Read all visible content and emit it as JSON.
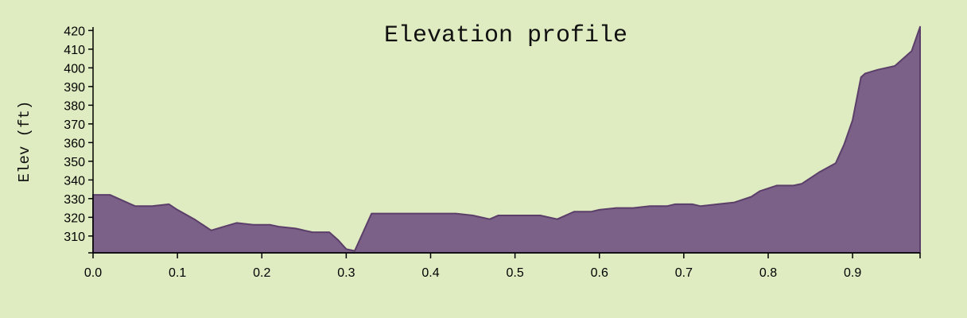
{
  "chart_data": {
    "type": "area",
    "title": "Elevation profile",
    "xlabel": "",
    "ylabel": "Elev (ft)",
    "xlim": [
      0,
      0.98
    ],
    "ylim": [
      301,
      421
    ],
    "grid": false,
    "colors": {
      "fill": "#7b6188",
      "stroke": "#5b3f6a",
      "background": "#dfebc0"
    },
    "x_ticks": [
      "0.0",
      "0.1",
      "0.2",
      "0.3",
      "0.4",
      "0.5",
      "0.6",
      "0.7",
      "0.8",
      "0.9"
    ],
    "y_ticks": [
      "310",
      "320",
      "330",
      "340",
      "350",
      "360",
      "370",
      "380",
      "390",
      "400",
      "410",
      "420"
    ],
    "series": [
      {
        "x": [
          0.0,
          0.02,
          0.04,
          0.05,
          0.07,
          0.09,
          0.1,
          0.12,
          0.14,
          0.155,
          0.17,
          0.19,
          0.21,
          0.22,
          0.24,
          0.26,
          0.28,
          0.29,
          0.3,
          0.31,
          0.32,
          0.33,
          0.35,
          0.4,
          0.43,
          0.45,
          0.47,
          0.48,
          0.5,
          0.53,
          0.55,
          0.57,
          0.59,
          0.6,
          0.62,
          0.64,
          0.66,
          0.68,
          0.69,
          0.71,
          0.72,
          0.74,
          0.76,
          0.78,
          0.79,
          0.81,
          0.83,
          0.84,
          0.86,
          0.88,
          0.89,
          0.9,
          0.91,
          0.915,
          0.93,
          0.95,
          0.97,
          0.98
        ],
        "values": [
          332,
          332,
          328,
          326,
          326,
          327,
          324,
          319,
          313,
          315,
          317,
          316,
          316,
          315,
          314,
          312,
          312,
          308,
          303,
          302,
          312,
          322,
          322,
          322,
          322,
          321,
          319,
          321,
          321,
          321,
          319,
          323,
          323,
          324,
          325,
          325,
          326,
          326,
          327,
          327,
          326,
          327,
          328,
          331,
          334,
          337,
          337,
          338,
          344,
          349,
          359,
          372,
          395,
          397,
          399,
          401,
          409,
          422
        ]
      }
    ]
  }
}
